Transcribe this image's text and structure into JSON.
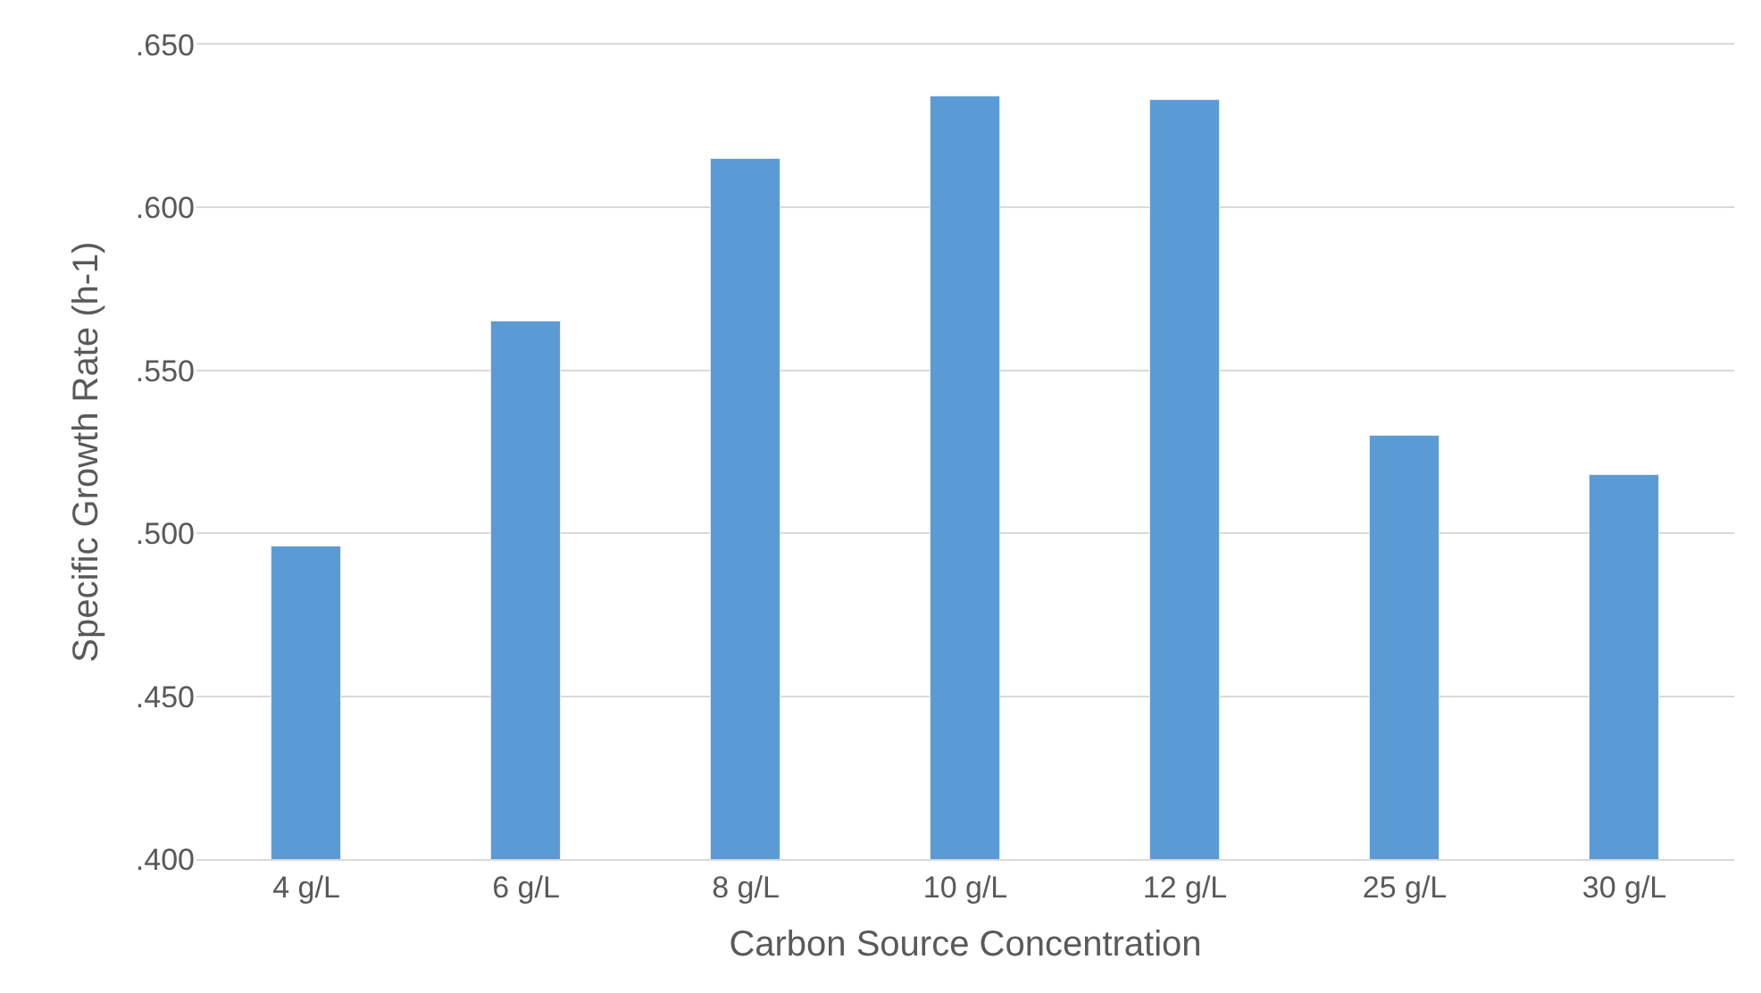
{
  "chart_data": {
    "type": "bar",
    "xlabel": "Carbon Source Concentration",
    "ylabel": "Specific Growth Rate (h-1)",
    "categories": [
      "4 g/L",
      "6 g/L",
      "8 g/L",
      "10 g/L",
      "12 g/L",
      "25 g/L",
      "30 g/L"
    ],
    "values": [
      0.496,
      0.565,
      0.615,
      0.634,
      0.633,
      0.53,
      0.518
    ],
    "color": "#5b9bd5",
    "ylim": [
      0.4,
      0.65
    ],
    "yticks": [
      {
        "value": 0.4,
        "label": ".400"
      },
      {
        "value": 0.45,
        "label": ".450"
      },
      {
        "value": 0.5,
        "label": ".500"
      },
      {
        "value": 0.55,
        "label": ".550"
      },
      {
        "value": 0.6,
        "label": ".600"
      },
      {
        "value": 0.65,
        "label": ".650"
      }
    ],
    "grid": "y"
  }
}
